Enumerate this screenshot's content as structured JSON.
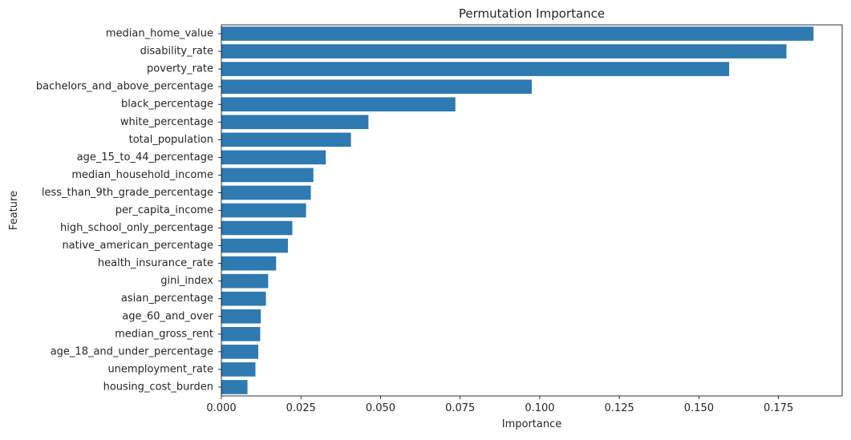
{
  "chart_data": {
    "type": "bar",
    "orientation": "horizontal",
    "title": "Permutation Importance",
    "xlabel": "Importance",
    "ylabel": "Feature",
    "xlim": [
      0,
      0.195
    ],
    "xticks": [
      0.0,
      0.025,
      0.05,
      0.075,
      0.1,
      0.125,
      0.15,
      0.175
    ],
    "xtick_labels": [
      "0.000",
      "0.025",
      "0.050",
      "0.075",
      "0.100",
      "0.125",
      "0.150",
      "0.175"
    ],
    "bar_color": "#2e7ab1",
    "grid": false,
    "categories": [
      "median_home_value",
      "disability_rate",
      "poverty_rate",
      "bachelors_and_above_percentage",
      "black_percentage",
      "white_percentage",
      "total_population",
      "age_15_to_44_percentage",
      "median_household_income",
      "less_than_9th_grade_percentage",
      "per_capita_income",
      "high_school_only_percentage",
      "native_american_percentage",
      "health_insurance_rate",
      "gini_index",
      "asian_percentage",
      "age_60_and_over",
      "median_gross_rent",
      "age_18_and_under_percentage",
      "unemployment_rate",
      "housing_cost_burden"
    ],
    "values": [
      0.186,
      0.1775,
      0.1595,
      0.0975,
      0.0735,
      0.0462,
      0.0407,
      0.0328,
      0.0289,
      0.0281,
      0.0266,
      0.0223,
      0.0209,
      0.0172,
      0.0147,
      0.014,
      0.0124,
      0.0122,
      0.0116,
      0.0107,
      0.0082
    ]
  }
}
